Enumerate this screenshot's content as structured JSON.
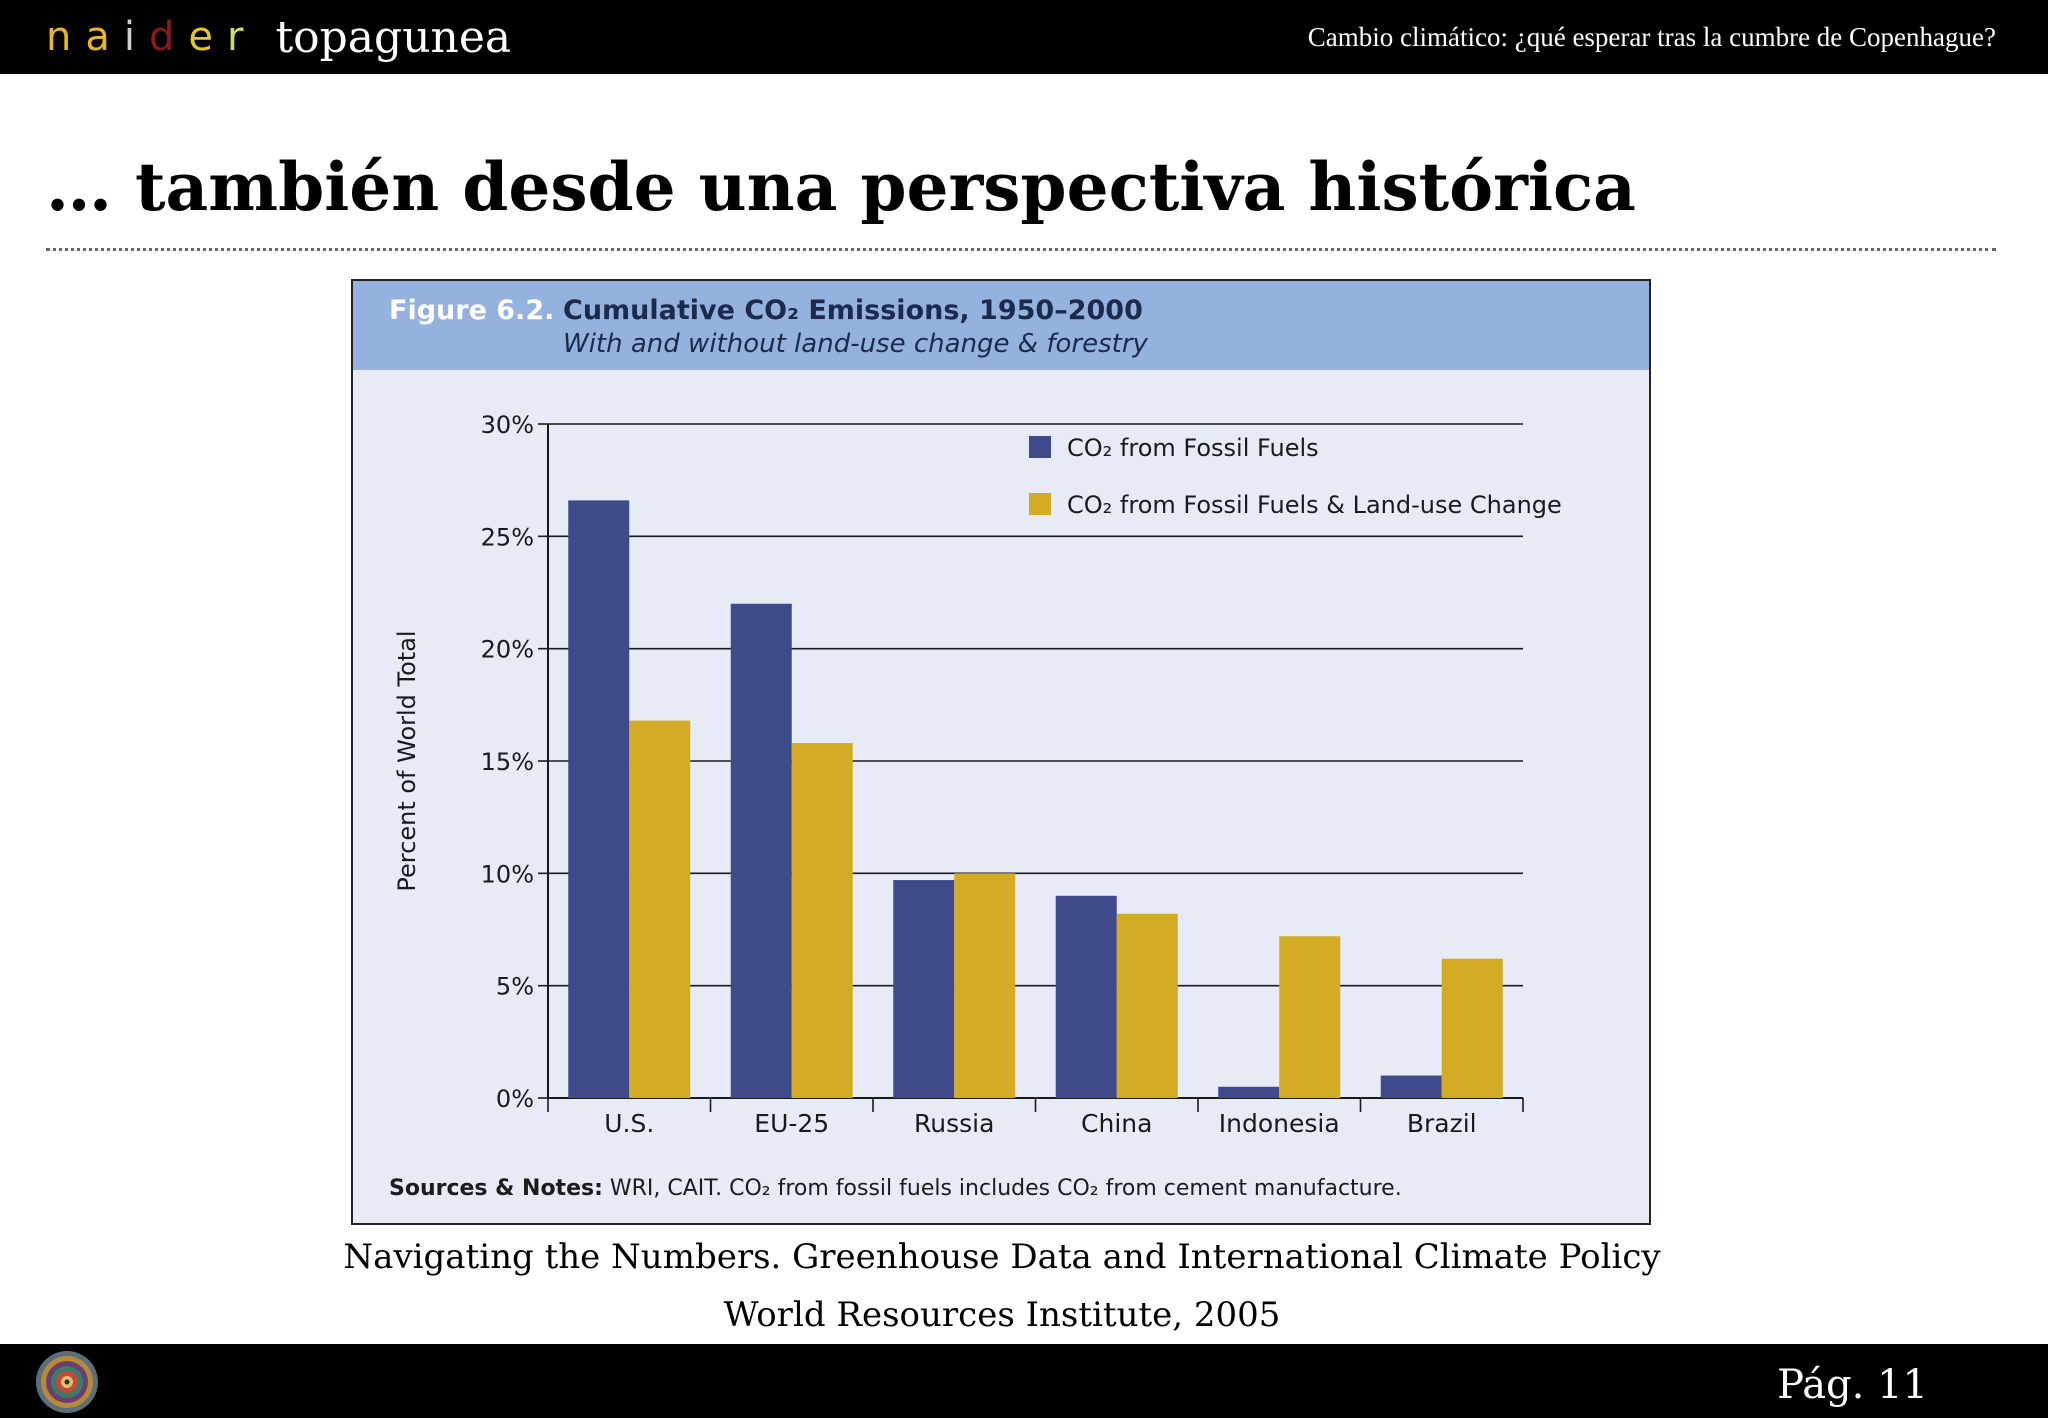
{
  "header": {
    "brand_letters": [
      {
        "char": "n",
        "color": "#e8b62a"
      },
      {
        "char": "a",
        "color": "#e8b62a"
      },
      {
        "char": "i",
        "color": "#cfcfcf"
      },
      {
        "char": "d",
        "color": "#8b1a1a"
      },
      {
        "char": "e",
        "color": "#e6c52a"
      },
      {
        "char": "r",
        "color": "#cfe060"
      }
    ],
    "brand_word": "topagunea",
    "right_text": "Cambio climático: ¿qué esperar tras la cumbre de Copenhague?"
  },
  "slide": {
    "title": "… también desde una perspectiva histórica"
  },
  "figure": {
    "label": "Figure 6.2.",
    "title": "Cumulative CO₂ Emissions, 1950–2000",
    "subtitle": "With and without land-use change & forestry",
    "notes_label": "Sources & Notes:",
    "notes_text": " WRI, CAIT. CO₂ from fossil fuels includes CO₂ from cement manufacture."
  },
  "chart_data": {
    "type": "bar",
    "categories": [
      "U.S.",
      "EU-25",
      "Russia",
      "China",
      "Indonesia",
      "Brazil"
    ],
    "series": [
      {
        "name": "CO₂ from Fossil Fuels",
        "color": "#3f4a8a",
        "values": [
          26.6,
          22.0,
          9.7,
          9.0,
          0.5,
          1.0
        ]
      },
      {
        "name": "CO₂ from Fossil Fuels & Land-use Change",
        "color": "#d4ab25",
        "values": [
          16.8,
          15.8,
          10.0,
          8.2,
          7.2,
          6.2
        ]
      }
    ],
    "ylabel": "Percent of World Total",
    "ylim": [
      0,
      30
    ],
    "yticks": [
      0,
      5,
      10,
      15,
      20,
      25,
      30
    ],
    "ytick_labels": [
      "0%",
      "5%",
      "10%",
      "15%",
      "20%",
      "25%",
      "30%"
    ],
    "grid": true,
    "legend_position": "top-right"
  },
  "captions": {
    "line1": "Navigating the Numbers. Greenhouse Data and International Climate Policy",
    "line2": "World Resources Institute, 2005"
  },
  "footer": {
    "page": "Pág. 11",
    "emblem_icon": "circular-emblem-icon"
  }
}
